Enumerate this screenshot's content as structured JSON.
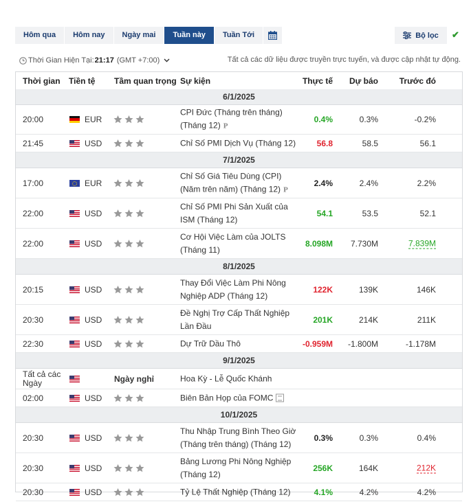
{
  "tabs": [
    {
      "label": "Hôm qua",
      "active": false
    },
    {
      "label": "Hôm nay",
      "active": false
    },
    {
      "label": "Ngày mai",
      "active": false
    },
    {
      "label": "Tuần này",
      "active": true
    },
    {
      "label": "Tuần Tới",
      "active": false
    }
  ],
  "calendar_icon": "calendar-icon",
  "filter": {
    "label": "Bộ lọc",
    "icon": "filter-sliders-icon"
  },
  "confirm_icon": "checkmark-icon",
  "time_info": {
    "label": "Thời Gian Hiện Tại:",
    "time": "21:17",
    "timezone": "(GMT +7:00)"
  },
  "notice": "Tất cả các dữ liệu được truyền trực tuyến, và được cập nhật tự động.",
  "headers": {
    "time": "Thời gian",
    "currency": "Tiền tệ",
    "importance": "Tầm quan trọng",
    "event": "Sự kiện",
    "actual": "Thực tế",
    "forecast": "Dự báo",
    "previous": "Trước đó"
  },
  "colors": {
    "active_tab": "#1f4e8c",
    "positive": "#26a626",
    "negative": "#e0242f",
    "date_bar": "#eceef0"
  },
  "days": [
    {
      "date": "6/1/2025",
      "rows": [
        {
          "time": "20:00",
          "flag": "de",
          "currency": "EUR",
          "event": "CPI Đức (Tháng trên tháng) (Tháng 12)",
          "pre": "P",
          "actual": "0.4%",
          "actual_color": "green",
          "forecast": "0.3%",
          "previous": "-0.2%"
        },
        {
          "time": "21:45",
          "flag": "us",
          "currency": "USD",
          "event": "Chỉ Số PMI Dịch Vụ (Tháng 12)",
          "actual": "56.8",
          "actual_color": "red",
          "forecast": "58.5",
          "previous": "56.1"
        }
      ]
    },
    {
      "date": "7/1/2025",
      "rows": [
        {
          "time": "17:00",
          "flag": "eu",
          "currency": "EUR",
          "event": "Chỉ Số Giá Tiêu Dùng (CPI) (Năm trên năm) (Tháng 12)",
          "pre": "P",
          "actual": "2.4%",
          "actual_color": "black",
          "forecast": "2.4%",
          "previous": "2.2%"
        },
        {
          "time": "22:00",
          "flag": "us",
          "currency": "USD",
          "event": "Chỉ Số PMI Phi Sản Xuất của ISM (Tháng 12)",
          "actual": "54.1",
          "actual_color": "green",
          "forecast": "53.5",
          "previous": "52.1"
        },
        {
          "time": "22:00",
          "flag": "us",
          "currency": "USD",
          "event": "Cơ Hội Việc Làm của JOLTS (Tháng 11)",
          "actual": "8.098M",
          "actual_color": "green",
          "forecast": "7.730M",
          "previous": "7.839M",
          "previous_color": "green",
          "previous_revised": true
        }
      ]
    },
    {
      "date": "8/1/2025",
      "rows": [
        {
          "time": "20:15",
          "flag": "us",
          "currency": "USD",
          "event": "Thay Đổi Việc Làm Phi Nông Nghiệp ADP (Tháng 12)",
          "actual": "122K",
          "actual_color": "red",
          "forecast": "139K",
          "previous": "146K"
        },
        {
          "time": "20:30",
          "flag": "us",
          "currency": "USD",
          "event": "Đề Nghị Trợ Cấp Thất Nghiệp Lần Đầu",
          "actual": "201K",
          "actual_color": "green",
          "forecast": "214K",
          "previous": "211K"
        },
        {
          "time": "22:30",
          "flag": "us",
          "currency": "USD",
          "event": "Dự Trữ Dầu Thô",
          "actual": "-0.959M",
          "actual_color": "red",
          "forecast": "-1.800M",
          "previous": "-1.178M"
        }
      ]
    },
    {
      "date": "9/1/2025",
      "rows": [
        {
          "time": "Tất cả các Ngày",
          "flag": "us",
          "currency": "",
          "holiday": "Ngày nghỉ",
          "event": "Hoa Kỳ - Lễ Quốc Khánh"
        },
        {
          "time": "02:00",
          "flag": "us",
          "currency": "USD",
          "event": "Biên Bản Họp của FOMC",
          "doc": true,
          "actual": "",
          "forecast": "",
          "previous": ""
        }
      ]
    },
    {
      "date": "10/1/2025",
      "rows": [
        {
          "time": "20:30",
          "flag": "us",
          "currency": "USD",
          "event": "Thu Nhập Trung Bình Theo Giờ (Tháng trên tháng) (Tháng 12)",
          "actual": "0.3%",
          "actual_color": "black",
          "forecast": "0.3%",
          "previous": "0.4%"
        },
        {
          "time": "20:30",
          "flag": "us",
          "currency": "USD",
          "event": "Bảng Lương Phi Nông Nghiệp (Tháng 12)",
          "actual": "256K",
          "actual_color": "green",
          "forecast": "164K",
          "previous": "212K",
          "previous_color": "red",
          "previous_revised": true
        },
        {
          "time": "20:30",
          "flag": "us",
          "currency": "USD",
          "event": "Tỷ Lệ Thất Nghiệp (Tháng 12)",
          "actual": "4.1%",
          "actual_color": "green",
          "forecast": "4.2%",
          "previous": "4.2%"
        }
      ]
    }
  ]
}
